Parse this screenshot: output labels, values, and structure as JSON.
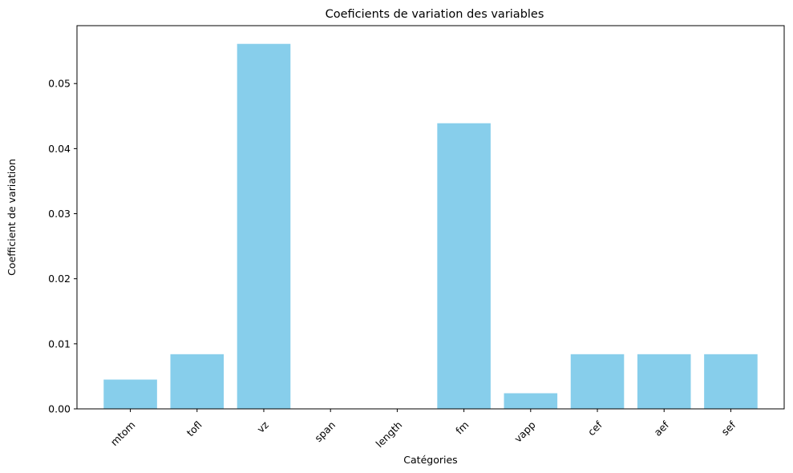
{
  "chart_data": {
    "type": "bar",
    "title": "Coeficients de variation des variables",
    "xlabel": "Catégories",
    "ylabel": "Coefficient de variation",
    "categories": [
      "mtom",
      "tofl",
      "vz",
      "span",
      "length",
      "fm",
      "vapp",
      "cef",
      "aef",
      "sef"
    ],
    "values": [
      0.0045,
      0.0084,
      0.0561,
      0.0,
      0.0,
      0.0439,
      0.0024,
      0.0084,
      0.0084,
      0.0084
    ],
    "ylim": [
      0,
      0.0589
    ],
    "yticks": [
      0.0,
      0.01,
      0.02,
      0.03,
      0.04,
      0.05
    ],
    "ytick_labels": [
      "0.00",
      "0.01",
      "0.02",
      "0.03",
      "0.04",
      "0.05"
    ],
    "bar_color": "#87CEEB",
    "grid": false,
    "xtick_rotation_deg": 45
  }
}
